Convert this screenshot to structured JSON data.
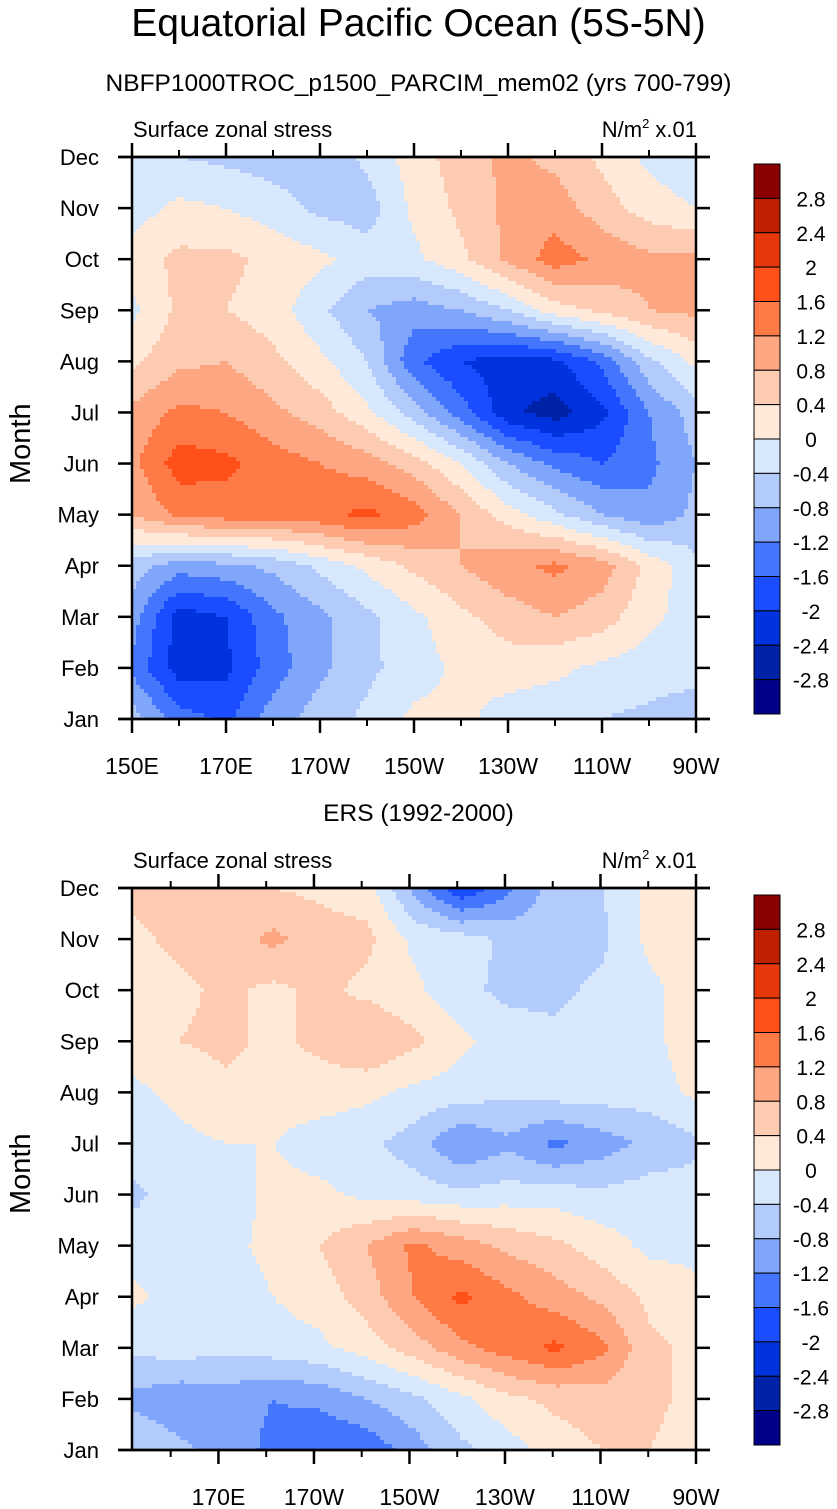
{
  "title": "Equatorial Pacific Ocean (5S-5N)",
  "colorbar": {
    "levels": [
      -2.8,
      -2.4,
      -2,
      -1.6,
      -1.2,
      -0.8,
      -0.4,
      0,
      0.4,
      0.8,
      1.2,
      1.6,
      2,
      2.4,
      2.8
    ],
    "labels": [
      "2.8",
      "2.4",
      "2",
      "1.6",
      "1.2",
      "0.8",
      "0.4",
      "0",
      "-0.4",
      "-0.8",
      "-1.2",
      "-1.6",
      "-2",
      "-2.4",
      "-2.8"
    ],
    "colors": [
      "#00008b",
      "#0022a8",
      "#0033dd",
      "#1a4dff",
      "#4376fc",
      "#80a6fb",
      "#b2cbfb",
      "#d7e8fd",
      "#ffe9d9",
      "#fdcbb2",
      "#fca782",
      "#fd7a47",
      "#ff5019",
      "#e6370a",
      "#bf2100",
      "#8b0000"
    ]
  },
  "chart_data": [
    {
      "type": "heatmap",
      "subtype": "filled-contour",
      "title": "NBFP1000TROC_p1500_PARCIM_mem02 (yrs 700-799)",
      "left_string": "Surface zonal stress",
      "right_string_main": "N/m",
      "right_string_sup": "2",
      "right_string_tail": " x.01",
      "xlabel": "",
      "ylabel": "Month",
      "x_tick_labels": [
        "150E",
        "170E",
        "170W",
        "150W",
        "130W",
        "110W",
        "90W"
      ],
      "x_tick_lons": [
        150,
        170,
        190,
        210,
        230,
        250,
        270
      ],
      "xlim": [
        150,
        270
      ],
      "y_tick_labels": [
        "Jan",
        "Feb",
        "Mar",
        "Apr",
        "May",
        "Jun",
        "Jul",
        "Aug",
        "Sep",
        "Oct",
        "Nov",
        "Dec"
      ],
      "ylim": [
        1,
        12
      ],
      "grid": false,
      "legend": "right colorbar",
      "units": "N/m^2 x.01",
      "x": [
        150,
        160,
        170,
        180,
        190,
        200,
        210,
        220,
        230,
        240,
        250,
        260,
        270
      ],
      "y": [
        "Jan",
        "Feb",
        "Mar",
        "Apr",
        "May",
        "Jun",
        "Jul",
        "Aug",
        "Sep",
        "Oct",
        "Nov",
        "Dec"
      ],
      "z": [
        [
          -0.6,
          -1.4,
          -1.7,
          -1.0,
          -0.6,
          -0.3,
          0.1,
          0.1,
          -0.2,
          -0.3,
          -0.4,
          -0.5,
          -0.7
        ],
        [
          -1.3,
          -2.2,
          -2.1,
          -1.4,
          -0.9,
          -0.5,
          -0.2,
          0.1,
          0.2,
          0.1,
          -0.1,
          -0.2,
          -0.2
        ],
        [
          -1.0,
          -2.2,
          -2.0,
          -1.3,
          -0.9,
          -0.5,
          -0.1,
          0.3,
          0.6,
          0.8,
          0.6,
          0.1,
          -0.2
        ],
        [
          -0.6,
          -1.0,
          -0.9,
          -0.7,
          -0.3,
          0.1,
          0.5,
          0.8,
          1.1,
          1.3,
          1.0,
          0.3,
          -0.3
        ],
        [
          0.8,
          1.3,
          1.4,
          1.4,
          1.5,
          1.7,
          1.4,
          0.8,
          0.2,
          -0.3,
          -0.8,
          -1.1,
          -0.7
        ],
        [
          1.1,
          1.8,
          1.7,
          1.4,
          1.2,
          1.0,
          0.6,
          0.0,
          -0.8,
          -1.3,
          -1.6,
          -1.3,
          -0.8
        ],
        [
          0.9,
          1.3,
          1.2,
          0.9,
          0.6,
          0.1,
          -0.6,
          -1.4,
          -2.3,
          -2.6,
          -2.1,
          -1.2,
          -0.6
        ],
        [
          0.3,
          0.7,
          0.8,
          0.5,
          0.1,
          -0.4,
          -1.5,
          -2.0,
          -2.2,
          -2.1,
          -1.5,
          -0.5,
          0.1
        ],
        [
          -0.1,
          0.5,
          0.4,
          0.2,
          -0.3,
          -0.8,
          -1.0,
          -0.8,
          -0.4,
          0.2,
          0.5,
          0.8,
          0.9
        ],
        [
          0.2,
          0.5,
          0.5,
          0.3,
          0.1,
          -0.2,
          -0.1,
          0.3,
          0.9,
          1.4,
          1.1,
          0.9,
          0.9
        ],
        [
          -0.2,
          0.1,
          0.0,
          -0.2,
          -0.5,
          -0.6,
          0.1,
          0.5,
          0.9,
          1.0,
          0.6,
          0.2,
          0.0
        ],
        [
          -0.3,
          -0.4,
          -0.5,
          -0.6,
          -0.7,
          -0.3,
          0.2,
          0.6,
          0.9,
          0.7,
          0.3,
          -0.1,
          -0.3
        ]
      ]
    },
    {
      "type": "heatmap",
      "subtype": "filled-contour",
      "title": "ERS (1992-2000)",
      "left_string": "Surface zonal stress",
      "right_string_main": "N/m",
      "right_string_sup": "2",
      "right_string_tail": " x.01",
      "xlabel": "",
      "ylabel": "Month",
      "x_tick_labels": [
        "170E",
        "170W",
        "150W",
        "130W",
        "110W",
        "90W"
      ],
      "x_tick_lons": [
        170,
        190,
        210,
        230,
        250,
        270
      ],
      "xlim": [
        151.9,
        270
      ],
      "y_tick_labels": [
        "Jan",
        "Feb",
        "Mar",
        "Apr",
        "May",
        "Jun",
        "Jul",
        "Aug",
        "Sep",
        "Oct",
        "Nov",
        "Dec"
      ],
      "ylim": [
        1,
        12
      ],
      "grid": false,
      "legend": "right colorbar",
      "units": "N/m^2 x.01",
      "x": [
        151.9,
        161.75,
        171.6,
        181.4,
        191.2,
        201.1,
        210.9,
        220.8,
        230.6,
        240.5,
        250.3,
        260.2,
        270
      ],
      "y": [
        "Jan",
        "Feb",
        "Mar",
        "Apr",
        "May",
        "Jun",
        "Jul",
        "Aug",
        "Sep",
        "Oct",
        "Nov",
        "Dec"
      ],
      "z": [
        [
          -0.4,
          -0.7,
          -1.0,
          -1.3,
          -1.6,
          -1.5,
          -1.0,
          -0.5,
          -0.2,
          0.2,
          0.4,
          0.4,
          0.2
        ],
        [
          -0.9,
          -1.1,
          -1.0,
          -1.2,
          -1.1,
          -0.8,
          -0.5,
          -0.1,
          0.3,
          0.5,
          0.6,
          0.5,
          0.3
        ],
        [
          -0.3,
          -0.2,
          -0.3,
          -0.2,
          -0.1,
          0.2,
          0.6,
          1.1,
          1.4,
          1.7,
          1.3,
          0.5,
          0.3
        ],
        [
          0.1,
          -0.2,
          -0.2,
          0.0,
          0.2,
          0.6,
          1.2,
          1.7,
          1.3,
          1.0,
          0.7,
          0.3,
          0.1
        ],
        [
          -0.2,
          -0.1,
          -0.1,
          0.1,
          0.4,
          0.8,
          1.3,
          1.0,
          0.7,
          0.5,
          0.2,
          -0.1,
          -0.1
        ],
        [
          -0.5,
          -0.2,
          -0.2,
          0.1,
          0.1,
          -0.1,
          -0.2,
          -0.3,
          -0.2,
          -0.2,
          -0.3,
          -0.2,
          -0.2
        ],
        [
          -0.2,
          -0.1,
          0.0,
          0.0,
          -0.2,
          -0.3,
          -0.6,
          -1.2,
          -0.9,
          -1.3,
          -1.0,
          -0.7,
          -0.5
        ],
        [
          -0.1,
          0.1,
          0.3,
          0.2,
          0.2,
          0.1,
          -0.1,
          -0.2,
          -0.3,
          -0.2,
          -0.2,
          -0.2,
          0.1
        ],
        [
          0.2,
          0.4,
          0.5,
          0.3,
          0.5,
          0.8,
          0.5,
          0.1,
          -0.2,
          -0.3,
          -0.2,
          -0.1,
          0.2
        ],
        [
          0.2,
          0.3,
          0.5,
          0.3,
          0.5,
          0.3,
          0.1,
          -0.3,
          -0.5,
          -0.5,
          -0.3,
          -0.1,
          0.2
        ],
        [
          0.3,
          0.5,
          0.6,
          0.9,
          0.6,
          0.5,
          -0.1,
          -0.2,
          -0.5,
          -0.6,
          -0.5,
          0.1,
          0.2
        ],
        [
          0.5,
          0.7,
          0.5,
          0.4,
          0.3,
          0.2,
          -0.9,
          -2.0,
          -1.3,
          -0.6,
          -0.4,
          0.1,
          0.2
        ]
      ]
    }
  ]
}
